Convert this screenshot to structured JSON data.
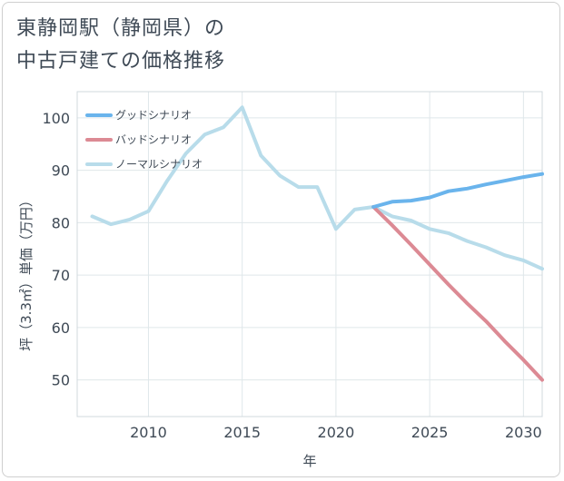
{
  "title": {
    "line1": "東静岡駅（静岡県）の",
    "line2": "中古戸建ての価格推移"
  },
  "chart_data": {
    "type": "line",
    "xlabel": "年",
    "ylabel": "坪（3.3㎡）単価（万円）",
    "xlim": [
      2006.2,
      2031
    ],
    "ylim": [
      43,
      105
    ],
    "xticks": [
      2010,
      2015,
      2020,
      2025,
      2030
    ],
    "yticks": [
      50,
      60,
      70,
      80,
      90,
      100
    ],
    "grid": true,
    "legend_position": "top-left",
    "series": [
      {
        "name": "グッドシナリオ",
        "color": "#6ab4ec",
        "x": [
          2022,
          2023,
          2024,
          2025,
          2026,
          2027,
          2028,
          2029,
          2030,
          2031
        ],
        "values": [
          83.0,
          84.0,
          84.2,
          84.8,
          86.0,
          86.5,
          87.3,
          88.0,
          88.7,
          89.3
        ]
      },
      {
        "name": "バッドシナリオ",
        "color": "#dc8a94",
        "x": [
          2022,
          2023,
          2024,
          2025,
          2026,
          2027,
          2028,
          2029,
          2030,
          2031
        ],
        "values": [
          83.0,
          79.5,
          75.8,
          72.0,
          68.2,
          64.6,
          61.2,
          57.4,
          53.8,
          50.0
        ]
      },
      {
        "name": "ノーマルシナリオ",
        "color": "#b8dcea",
        "x": [
          2007,
          2008,
          2009,
          2010,
          2011,
          2012,
          2013,
          2014,
          2015,
          2016,
          2017,
          2018,
          2019,
          2020,
          2021,
          2022,
          2023,
          2024,
          2025,
          2026,
          2027,
          2028,
          2029,
          2030,
          2031
        ],
        "values": [
          81.2,
          79.7,
          80.6,
          82.2,
          88.0,
          93.2,
          96.8,
          98.2,
          102.0,
          92.8,
          89.0,
          86.8,
          86.8,
          78.8,
          82.5,
          83.0,
          81.2,
          80.4,
          78.8,
          78.0,
          76.5,
          75.3,
          73.8,
          72.8,
          71.2
        ]
      }
    ]
  }
}
